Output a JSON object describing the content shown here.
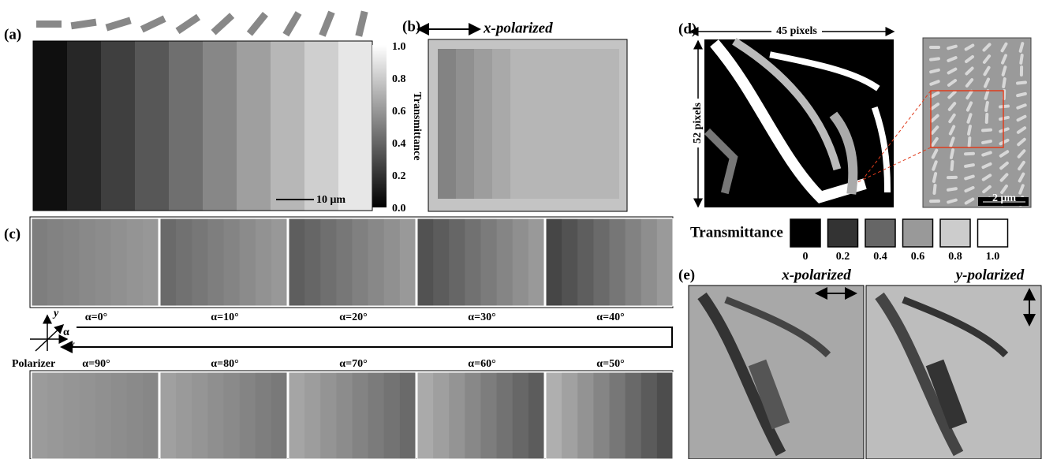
{
  "panels": {
    "a": {
      "label": "(a)",
      "colorbar_ticks": [
        "1.0",
        "0.8",
        "0.6",
        "0.4",
        "0.2",
        "0.0"
      ],
      "colorbar_title": "Transmittance",
      "scale_bar": "10 μm"
    },
    "b": {
      "label": "(b)",
      "title": "x-polarized"
    },
    "c": {
      "label": "(c)",
      "top_angles": [
        "α=0°",
        "α=10°",
        "α=20°",
        "α=30°",
        "α=40°"
      ],
      "bottom_angles": [
        "α=90°",
        "α=80°",
        "α=70°",
        "α=60°",
        "α=50°"
      ],
      "axes": {
        "y": "y",
        "x": "x",
        "angle": "α",
        "caption": "Polarizer"
      }
    },
    "d": {
      "label": "(d)",
      "width_label": "45 pixels",
      "height_label": "52 pixels",
      "scale_bar": "2 μm",
      "legend_title": "Transmittance",
      "legend_levels": [
        "0",
        "0.2",
        "0.4",
        "0.6",
        "0.8",
        "1.0"
      ]
    },
    "e": {
      "label": "(e)",
      "left_title": "x-polarized",
      "right_title": "y-polarized"
    }
  }
}
